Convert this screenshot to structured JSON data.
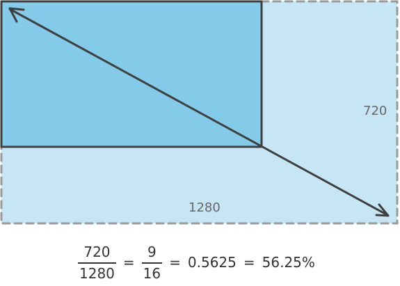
{
  "diagram": {
    "outer_width_label": "1280",
    "outer_height_label": "720"
  },
  "equation": {
    "fraction_1": {
      "numerator": "720",
      "denominator": "1280"
    },
    "equals_1": "=",
    "fraction_2": {
      "numerator": "9",
      "denominator": "16"
    },
    "equals_2": "=",
    "decimal": "0.5625",
    "equals_3": "=",
    "percent": "56.25%"
  },
  "colors": {
    "outer_fill": "#c6e6f6",
    "inner_fill": "#84cbe9",
    "stroke": "#3f3f3f",
    "dashed_border": "#9a9a9a",
    "label_text": "#666666"
  }
}
